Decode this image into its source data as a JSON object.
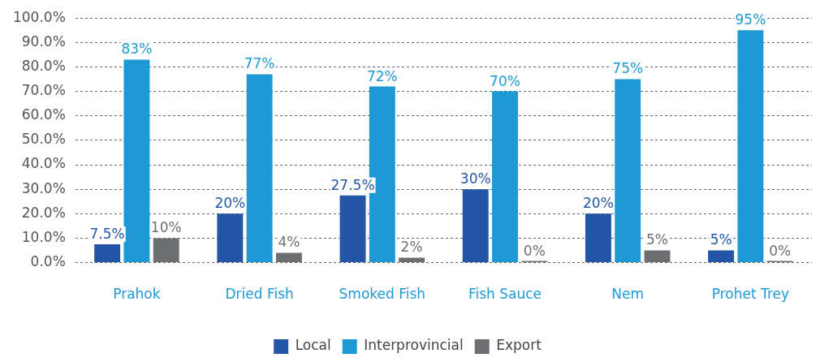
{
  "chart_data": {
    "type": "bar",
    "categories": [
      "Prahok",
      "Dried Fish",
      "Smoked Fish",
      "Fish Sauce",
      "Nem",
      "Prohet Trey"
    ],
    "series": [
      {
        "name": "Local",
        "color": "#2356a6",
        "values": [
          7.5,
          20,
          27.5,
          30,
          20,
          5
        ],
        "value_labels": [
          "7.5%",
          "20%",
          "27.5%",
          "30%",
          "20%",
          "5%"
        ]
      },
      {
        "name": "Interprovincial",
        "color": "#1d9ad6",
        "values": [
          83,
          77,
          72,
          70,
          75,
          95
        ],
        "value_labels": [
          "83%",
          "77%",
          "72%",
          "70%",
          "75%",
          "95%"
        ]
      },
      {
        "name": "Export",
        "color": "#6d6e71",
        "values": [
          10,
          4,
          2,
          0,
          5,
          0
        ],
        "value_labels": [
          "10%",
          "4%",
          "2%",
          "0%",
          "5%",
          "0%"
        ]
      }
    ],
    "ylim": [
      0,
      100
    ],
    "yticks": [
      {
        "value": 0,
        "label": "0.0%"
      },
      {
        "value": 10,
        "label": "10.0%"
      },
      {
        "value": 20,
        "label": "20.0%"
      },
      {
        "value": 30,
        "label": "30.0%"
      },
      {
        "value": 40,
        "label": "40.0%"
      },
      {
        "value": 50,
        "label": "50.0%"
      },
      {
        "value": 60,
        "label": "60.0%"
      },
      {
        "value": 70,
        "label": "70.0%"
      },
      {
        "value": 80,
        "label": "80.0%"
      },
      {
        "value": 90,
        "label": "90.0%"
      },
      {
        "value": 100,
        "label": "100.0%"
      }
    ],
    "grid": "y",
    "legend": "bottom"
  }
}
